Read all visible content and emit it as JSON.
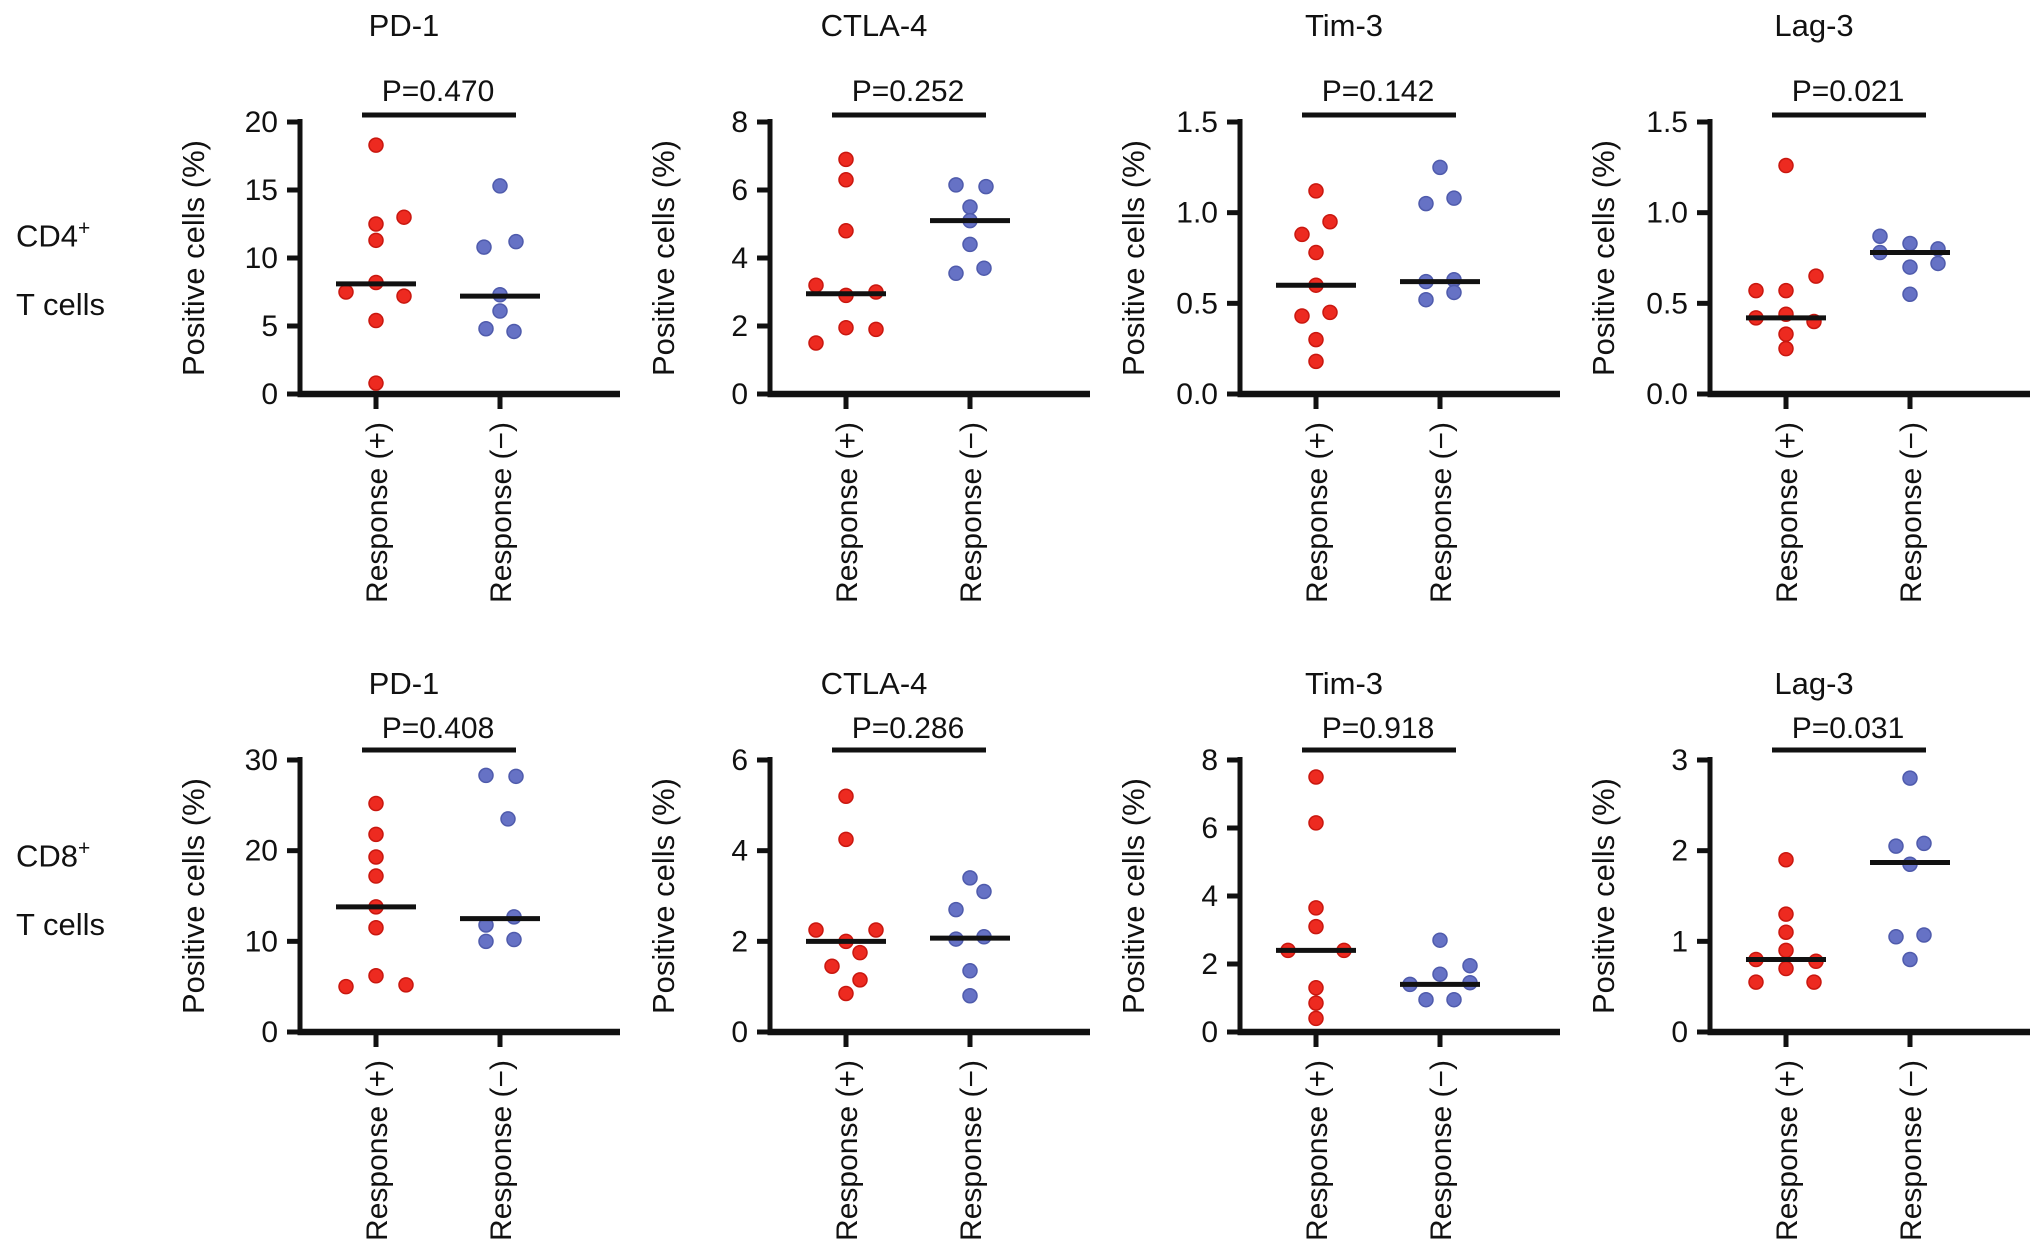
{
  "colors": {
    "response_positive": "#ed2a20",
    "response_positive_edge": "#c9170f",
    "response_negative": "#6672c5",
    "response_negative_edge": "#4f5bac",
    "axis": "#111111"
  },
  "labels": {
    "ylabel": "Positive cells (%)",
    "group_positive": "Response (+)",
    "group_negative": "Response (−)"
  },
  "rows": [
    {
      "cell": "CD4",
      "sup": "+",
      "line2": "T cells"
    },
    {
      "cell": "CD8",
      "sup": "+",
      "line2": "T cells"
    }
  ],
  "chart_data": [
    {
      "type": "scatter",
      "row": "CD4+ T cells",
      "title": "PD-1",
      "p_label": "P=0.470",
      "ylabel": "Positive cells (%)",
      "ylim": [
        0,
        20
      ],
      "yticks": [
        {
          "v": 0,
          "label": "0"
        },
        {
          "v": 5,
          "label": "5"
        },
        {
          "v": 10,
          "label": "10"
        },
        {
          "v": 15,
          "label": "15"
        },
        {
          "v": 20,
          "label": "20"
        }
      ],
      "categories": [
        "Response (+)",
        "Response (−)"
      ],
      "groups": [
        {
          "label": "Response (+)",
          "color_key": "response_positive",
          "median": 8.1,
          "points": [
            [
              18.3,
              0
            ],
            [
              13.0,
              28
            ],
            [
              12.5,
              0
            ],
            [
              11.3,
              0
            ],
            [
              8.2,
              0
            ],
            [
              7.5,
              -30
            ],
            [
              7.2,
              28
            ],
            [
              5.4,
              0
            ],
            [
              0.8,
              0
            ]
          ]
        },
        {
          "label": "Response (−)",
          "color_key": "response_negative",
          "median": 7.2,
          "points": [
            [
              15.3,
              0
            ],
            [
              11.2,
              16
            ],
            [
              10.8,
              -16
            ],
            [
              7.3,
              0
            ],
            [
              6.1,
              0
            ],
            [
              4.8,
              -14
            ],
            [
              4.6,
              14
            ]
          ]
        }
      ]
    },
    {
      "type": "scatter",
      "row": "CD4+ T cells",
      "title": "CTLA-4",
      "p_label": "P=0.252",
      "ylabel": "Positive cells (%)",
      "ylim": [
        0,
        8
      ],
      "yticks": [
        {
          "v": 0,
          "label": "0"
        },
        {
          "v": 2,
          "label": "2"
        },
        {
          "v": 4,
          "label": "4"
        },
        {
          "v": 6,
          "label": "6"
        },
        {
          "v": 8,
          "label": "8"
        }
      ],
      "categories": [
        "Response (+)",
        "Response (−)"
      ],
      "groups": [
        {
          "label": "Response (+)",
          "color_key": "response_positive",
          "median": 2.95,
          "points": [
            [
              6.9,
              0
            ],
            [
              6.3,
              0
            ],
            [
              4.8,
              0
            ],
            [
              3.2,
              -30
            ],
            [
              2.9,
              0
            ],
            [
              3.0,
              30
            ],
            [
              1.95,
              0
            ],
            [
              1.9,
              30
            ],
            [
              1.5,
              -30
            ]
          ]
        },
        {
          "label": "Response (−)",
          "color_key": "response_negative",
          "median": 5.1,
          "points": [
            [
              6.15,
              -14
            ],
            [
              6.1,
              16
            ],
            [
              5.5,
              0
            ],
            [
              5.1,
              0
            ],
            [
              4.4,
              0
            ],
            [
              3.55,
              -14
            ],
            [
              3.7,
              14
            ]
          ]
        }
      ]
    },
    {
      "type": "scatter",
      "row": "CD4+ T cells",
      "title": "Tim-3",
      "p_label": "P=0.142",
      "ylabel": "Positive cells (%)",
      "ylim": [
        0,
        1.5
      ],
      "yticks": [
        {
          "v": 0,
          "label": "0.0"
        },
        {
          "v": 0.5,
          "label": "0.5"
        },
        {
          "v": 1.0,
          "label": "1.0"
        },
        {
          "v": 1.5,
          "label": "1.5"
        }
      ],
      "categories": [
        "Response (+)",
        "Response (−)"
      ],
      "groups": [
        {
          "label": "Response (+)",
          "color_key": "response_positive",
          "median": 0.6,
          "points": [
            [
              1.12,
              0
            ],
            [
              0.95,
              14
            ],
            [
              0.88,
              -14
            ],
            [
              0.78,
              0
            ],
            [
              0.6,
              0
            ],
            [
              0.43,
              -14
            ],
            [
              0.45,
              14
            ],
            [
              0.3,
              0
            ],
            [
              0.18,
              0
            ]
          ]
        },
        {
          "label": "Response (−)",
          "color_key": "response_negative",
          "median": 0.62,
          "points": [
            [
              1.25,
              0
            ],
            [
              1.05,
              -14
            ],
            [
              1.08,
              14
            ],
            [
              0.62,
              -14
            ],
            [
              0.63,
              14
            ],
            [
              0.52,
              -14
            ],
            [
              0.56,
              14
            ]
          ]
        }
      ]
    },
    {
      "type": "scatter",
      "row": "CD4+ T cells",
      "title": "Lag-3",
      "p_label": "P=0.021",
      "ylabel": "Positive cells (%)",
      "ylim": [
        0,
        1.5
      ],
      "yticks": [
        {
          "v": 0,
          "label": "0.0"
        },
        {
          "v": 0.5,
          "label": "0.5"
        },
        {
          "v": 1.0,
          "label": "1.0"
        },
        {
          "v": 1.5,
          "label": "1.5"
        }
      ],
      "categories": [
        "Response (+)",
        "Response (−)"
      ],
      "groups": [
        {
          "label": "Response (+)",
          "color_key": "response_positive",
          "median": 0.42,
          "points": [
            [
              1.26,
              0
            ],
            [
              0.57,
              -30
            ],
            [
              0.57,
              0
            ],
            [
              0.65,
              30
            ],
            [
              0.42,
              -30
            ],
            [
              0.44,
              0
            ],
            [
              0.4,
              28
            ],
            [
              0.33,
              0
            ],
            [
              0.25,
              0
            ]
          ]
        },
        {
          "label": "Response (−)",
          "color_key": "response_negative",
          "median": 0.78,
          "points": [
            [
              0.87,
              -30
            ],
            [
              0.83,
              0
            ],
            [
              0.8,
              28
            ],
            [
              0.78,
              -30
            ],
            [
              0.72,
              28
            ],
            [
              0.7,
              0
            ],
            [
              0.55,
              0
            ]
          ]
        }
      ]
    },
    {
      "type": "scatter",
      "row": "CD8+ T cells",
      "title": "PD-1",
      "p_label": "P=0.408",
      "ylabel": "Positive cells (%)",
      "ylim": [
        0,
        30
      ],
      "yticks": [
        {
          "v": 0,
          "label": "0"
        },
        {
          "v": 10,
          "label": "10"
        },
        {
          "v": 20,
          "label": "20"
        },
        {
          "v": 30,
          "label": "30"
        }
      ],
      "categories": [
        "Response (+)",
        "Response (−)"
      ],
      "groups": [
        {
          "label": "Response (+)",
          "color_key": "response_positive",
          "median": 13.8,
          "points": [
            [
              25.2,
              0
            ],
            [
              21.8,
              0
            ],
            [
              19.3,
              0
            ],
            [
              17.2,
              0
            ],
            [
              13.8,
              0
            ],
            [
              11.5,
              0
            ],
            [
              6.2,
              0
            ],
            [
              5.0,
              -30
            ],
            [
              5.2,
              30
            ]
          ]
        },
        {
          "label": "Response (−)",
          "color_key": "response_negative",
          "median": 12.5,
          "points": [
            [
              28.3,
              -14
            ],
            [
              28.2,
              16
            ],
            [
              23.5,
              8
            ],
            [
              12.7,
              14
            ],
            [
              11.8,
              -14
            ],
            [
              10.0,
              -14
            ],
            [
              10.2,
              14
            ]
          ]
        }
      ]
    },
    {
      "type": "scatter",
      "row": "CD8+ T cells",
      "title": "CTLA-4",
      "p_label": "P=0.286",
      "ylabel": "Positive cells (%)",
      "ylim": [
        0,
        6
      ],
      "yticks": [
        {
          "v": 0,
          "label": "0"
        },
        {
          "v": 2,
          "label": "2"
        },
        {
          "v": 4,
          "label": "4"
        },
        {
          "v": 6,
          "label": "6"
        }
      ],
      "categories": [
        "Response (+)",
        "Response (−)"
      ],
      "groups": [
        {
          "label": "Response (+)",
          "color_key": "response_positive",
          "median": 2.0,
          "points": [
            [
              5.2,
              0
            ],
            [
              4.25,
              0
            ],
            [
              2.25,
              -30
            ],
            [
              2.0,
              0
            ],
            [
              2.25,
              30
            ],
            [
              1.75,
              14
            ],
            [
              1.45,
              -14
            ],
            [
              1.15,
              14
            ],
            [
              0.85,
              0
            ]
          ]
        },
        {
          "label": "Response (−)",
          "color_key": "response_negative",
          "median": 2.07,
          "points": [
            [
              3.4,
              0
            ],
            [
              3.1,
              14
            ],
            [
              2.7,
              -14
            ],
            [
              2.05,
              -14
            ],
            [
              2.1,
              14
            ],
            [
              1.35,
              0
            ],
            [
              0.8,
              0
            ]
          ]
        }
      ]
    },
    {
      "type": "scatter",
      "row": "CD8+ T cells",
      "title": "Tim-3",
      "p_label": "P=0.918",
      "ylabel": "Positive cells (%)",
      "ylim": [
        0,
        8
      ],
      "yticks": [
        {
          "v": 0,
          "label": "0"
        },
        {
          "v": 2,
          "label": "2"
        },
        {
          "v": 4,
          "label": "4"
        },
        {
          "v": 6,
          "label": "6"
        },
        {
          "v": 8,
          "label": "8"
        }
      ],
      "categories": [
        "Response (+)",
        "Response (−)"
      ],
      "groups": [
        {
          "label": "Response (+)",
          "color_key": "response_positive",
          "median": 2.4,
          "points": [
            [
              7.5,
              0
            ],
            [
              6.15,
              0
            ],
            [
              3.65,
              0
            ],
            [
              3.1,
              0
            ],
            [
              2.4,
              -28
            ],
            [
              2.4,
              28
            ],
            [
              1.3,
              0
            ],
            [
              0.85,
              0
            ],
            [
              0.4,
              0
            ]
          ]
        },
        {
          "label": "Response (−)",
          "color_key": "response_negative",
          "median": 1.4,
          "points": [
            [
              2.7,
              0
            ],
            [
              1.95,
              30
            ],
            [
              1.7,
              0
            ],
            [
              1.4,
              -30
            ],
            [
              1.45,
              30
            ],
            [
              0.95,
              -14
            ],
            [
              0.95,
              14
            ]
          ]
        }
      ]
    },
    {
      "type": "scatter",
      "row": "CD8+ T cells",
      "title": "Lag-3",
      "p_label": "P=0.031",
      "ylabel": "Positive cells (%)",
      "ylim": [
        0,
        3
      ],
      "yticks": [
        {
          "v": 0,
          "label": "0"
        },
        {
          "v": 1,
          "label": "1"
        },
        {
          "v": 2,
          "label": "2"
        },
        {
          "v": 3,
          "label": "3"
        }
      ],
      "categories": [
        "Response (+)",
        "Response (−)"
      ],
      "groups": [
        {
          "label": "Response (+)",
          "color_key": "response_positive",
          "median": 0.8,
          "points": [
            [
              1.9,
              0
            ],
            [
              1.3,
              0
            ],
            [
              1.1,
              0
            ],
            [
              0.9,
              0
            ],
            [
              0.8,
              -30
            ],
            [
              0.78,
              30
            ],
            [
              0.7,
              0
            ],
            [
              0.55,
              -30
            ],
            [
              0.55,
              28
            ]
          ]
        },
        {
          "label": "Response (−)",
          "color_key": "response_negative",
          "median": 1.87,
          "points": [
            [
              2.8,
              0
            ],
            [
              2.05,
              -14
            ],
            [
              2.08,
              14
            ],
            [
              1.85,
              0
            ],
            [
              1.05,
              -14
            ],
            [
              1.07,
              14
            ],
            [
              0.8,
              0
            ]
          ]
        }
      ]
    }
  ]
}
